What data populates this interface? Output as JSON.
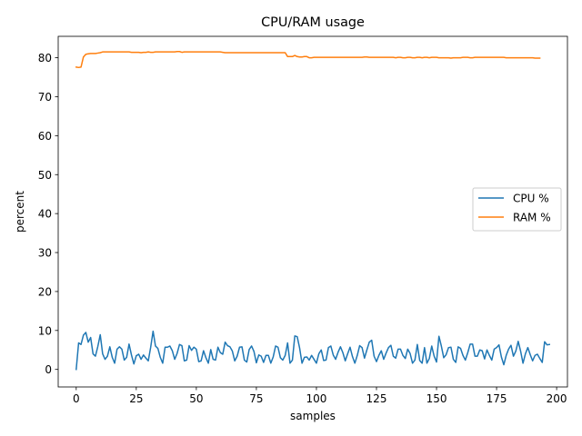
{
  "chart_data": {
    "type": "line",
    "title": "CPU/RAM usage",
    "xlabel": "samples",
    "ylabel": "percent",
    "xlim": [
      -7.5,
      204.5
    ],
    "ylim": [
      -4.5,
      85.5
    ],
    "xticks": [
      0,
      25,
      50,
      75,
      100,
      125,
      150,
      175,
      200
    ],
    "yticks": [
      0,
      10,
      20,
      30,
      40,
      50,
      60,
      70,
      80
    ],
    "grid": false,
    "legend_position": "center-right",
    "series": [
      {
        "name": "CPU %",
        "color": "#1f77b4",
        "values": [
          0.0,
          6.8,
          6.4,
          8.8,
          9.5,
          7.0,
          8.2,
          4.0,
          3.4,
          5.9,
          8.9,
          4.0,
          2.6,
          3.4,
          5.8,
          3.1,
          1.6,
          5.2,
          5.8,
          5.2,
          2.4,
          3.1,
          6.5,
          3.7,
          1.4,
          3.5,
          3.9,
          2.6,
          3.7,
          2.9,
          2.2,
          5.7,
          9.8,
          6.0,
          5.4,
          3.1,
          1.6,
          5.7,
          5.7,
          6.0,
          4.8,
          2.6,
          4.1,
          6.4,
          6.1,
          2.2,
          2.4,
          6.1,
          4.9,
          5.7,
          5.2,
          2.0,
          2.2,
          4.8,
          3.0,
          1.6,
          5.1,
          2.6,
          2.4,
          5.7,
          4.3,
          3.9,
          7.0,
          6.1,
          5.8,
          4.7,
          2.2,
          3.4,
          5.7,
          5.8,
          2.4,
          1.9,
          5.1,
          6.0,
          4.6,
          1.7,
          3.7,
          3.4,
          1.8,
          3.6,
          3.6,
          1.6,
          3.2,
          6.0,
          5.7,
          3.0,
          2.4,
          3.6,
          6.8,
          1.6,
          2.4,
          8.6,
          8.4,
          5.5,
          1.6,
          3.1,
          3.2,
          2.4,
          3.6,
          2.6,
          1.6,
          4.0,
          5.0,
          2.3,
          2.4,
          5.6,
          6.0,
          3.7,
          2.6,
          4.4,
          5.8,
          4.3,
          2.2,
          4.0,
          5.7,
          3.3,
          1.6,
          3.6,
          6.1,
          5.6,
          2.9,
          5.0,
          7.0,
          7.5,
          3.4,
          2.0,
          3.6,
          4.8,
          2.6,
          4.2,
          5.6,
          6.2,
          3.4,
          2.9,
          5.2,
          5.2,
          3.6,
          2.8,
          5.2,
          4.1,
          1.6,
          2.4,
          6.4,
          2.3,
          1.6,
          5.6,
          1.6,
          2.8,
          6.0,
          3.4,
          1.9,
          8.5,
          6.0,
          3.0,
          3.8,
          5.6,
          5.7,
          2.6,
          1.8,
          5.8,
          5.4,
          3.6,
          2.4,
          4.3,
          6.5,
          6.5,
          3.4,
          3.4,
          5.0,
          4.8,
          2.7,
          5.0,
          3.6,
          2.4,
          5.2,
          5.6,
          6.3,
          3.2,
          1.2,
          3.6,
          5.2,
          6.2,
          3.4,
          4.7,
          7.2,
          4.7,
          1.6,
          4.0,
          5.6,
          3.8,
          2.2,
          3.6,
          3.9,
          2.8,
          1.8,
          7.1,
          6.3,
          6.4
        ]
      },
      {
        "name": "RAM %",
        "color": "#ff7f0e",
        "values": [
          77.6,
          77.5,
          77.6,
          80.2,
          80.9,
          81.0,
          81.1,
          81.1,
          81.1,
          81.2,
          81.3,
          81.5,
          81.5,
          81.5,
          81.5,
          81.5,
          81.5,
          81.5,
          81.5,
          81.5,
          81.5,
          81.5,
          81.5,
          81.4,
          81.4,
          81.4,
          81.4,
          81.3,
          81.4,
          81.4,
          81.5,
          81.4,
          81.4,
          81.5,
          81.5,
          81.5,
          81.5,
          81.5,
          81.5,
          81.5,
          81.5,
          81.5,
          81.6,
          81.6,
          81.4,
          81.5,
          81.5,
          81.5,
          81.5,
          81.5,
          81.5,
          81.5,
          81.5,
          81.5,
          81.5,
          81.5,
          81.5,
          81.5,
          81.5,
          81.5,
          81.5,
          81.4,
          81.3,
          81.3,
          81.3,
          81.3,
          81.3,
          81.3,
          81.3,
          81.3,
          81.3,
          81.3,
          81.3,
          81.3,
          81.3,
          81.3,
          81.3,
          81.3,
          81.3,
          81.3,
          81.3,
          81.3,
          81.3,
          81.3,
          81.3,
          81.3,
          81.3,
          81.3,
          80.3,
          80.3,
          80.3,
          80.6,
          80.3,
          80.2,
          80.2,
          80.3,
          80.3,
          80.0,
          80.0,
          80.1,
          80.1,
          80.1,
          80.1,
          80.1,
          80.1,
          80.1,
          80.1,
          80.1,
          80.1,
          80.1,
          80.1,
          80.1,
          80.1,
          80.1,
          80.1,
          80.1,
          80.1,
          80.1,
          80.1,
          80.1,
          80.2,
          80.2,
          80.1,
          80.1,
          80.1,
          80.1,
          80.1,
          80.1,
          80.1,
          80.1,
          80.1,
          80.1,
          80.1,
          80.0,
          80.1,
          80.1,
          80.0,
          80.0,
          80.1,
          80.1,
          80.0,
          80.0,
          80.1,
          80.1,
          80.0,
          80.1,
          80.1,
          80.0,
          80.1,
          80.1,
          80.1,
          80.0,
          80.0,
          80.0,
          80.0,
          80.0,
          79.9,
          80.0,
          80.0,
          80.0,
          80.0,
          80.1,
          80.1,
          80.1,
          80.0,
          80.0,
          80.1,
          80.1,
          80.1,
          80.1,
          80.1,
          80.1,
          80.1,
          80.1,
          80.1,
          80.1,
          80.1,
          80.1,
          80.1,
          80.0,
          80.0,
          80.0,
          80.0,
          80.0,
          80.0,
          80.0,
          80.0,
          80.0,
          80.0,
          80.0,
          80.0,
          79.9,
          79.9,
          79.9
        ]
      }
    ]
  }
}
